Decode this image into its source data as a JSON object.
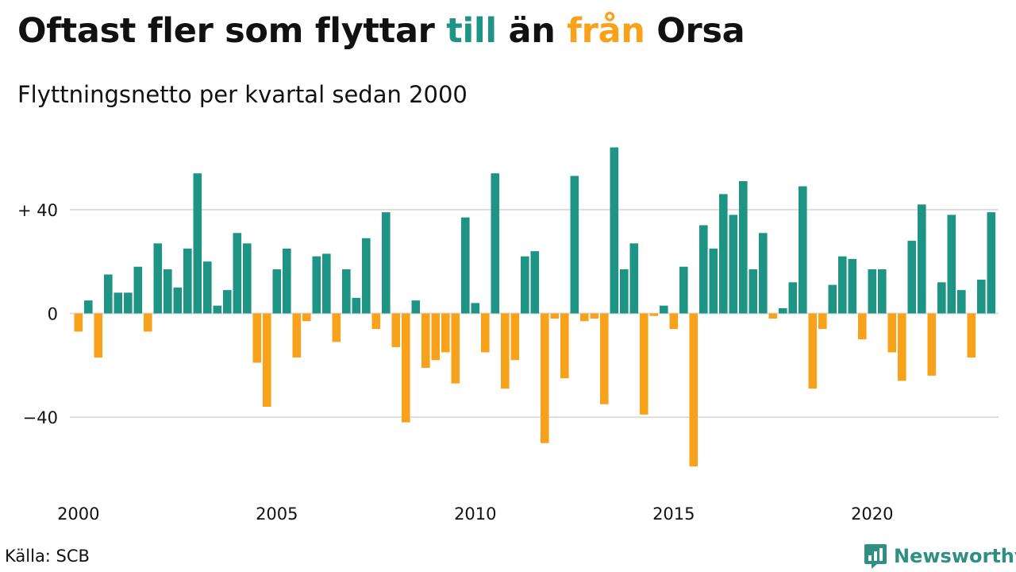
{
  "title": {
    "prefix": "Oftast fler som flyttar ",
    "till": "till",
    "middle": " än ",
    "fran": "från",
    "suffix": " Orsa"
  },
  "subtitle": "Flyttningsnetto per kvartal sedan 2000",
  "source": "Källa: SCB",
  "brand": {
    "name": "Newsworthy",
    "logo_icon": "newsworthy-logo-icon"
  },
  "colors": {
    "positive": "#1e9485",
    "negative": "#f8a11a",
    "grid": "#dddddd",
    "till_text": "#1e9485",
    "fran_text": "#f8a11a"
  },
  "chart_data": {
    "type": "bar",
    "title": "Oftast fler som flyttar till än från Orsa",
    "subtitle": "Flyttningsnetto per kvartal sedan 2000",
    "xlabel": "",
    "ylabel": "",
    "x_start": "2000 Q1",
    "x_ticks": [
      "2000",
      "2005",
      "2010",
      "2015",
      "2020"
    ],
    "y_ticks": [
      {
        "value": 40,
        "label": "+ 40"
      },
      {
        "value": 0,
        "label": "0"
      },
      {
        "value": -40,
        "label": "−40"
      }
    ],
    "ylim": [
      -60,
      65
    ],
    "grid": true,
    "values": [
      -7,
      5,
      -17,
      15,
      8,
      8,
      18,
      -7,
      27,
      17,
      10,
      25,
      54,
      20,
      3,
      9,
      31,
      27,
      -19,
      -36,
      17,
      25,
      -17,
      -3,
      22,
      23,
      -11,
      17,
      6,
      29,
      -6,
      39,
      -13,
      -42,
      5,
      -21,
      -18,
      -15,
      -27,
      37,
      4,
      -15,
      54,
      -29,
      -18,
      22,
      24,
      -50,
      -2,
      -25,
      53,
      -3,
      -2,
      -35,
      64,
      17,
      27,
      -39,
      -1,
      3,
      -6,
      18,
      -59,
      34,
      25,
      46,
      38,
      51,
      17,
      31,
      -2,
      2,
      12,
      49,
      -29,
      -6,
      11,
      22,
      21,
      -10,
      17,
      17,
      -15,
      -26,
      28,
      42,
      -24,
      12,
      38,
      9,
      -17,
      13,
      39
    ]
  }
}
